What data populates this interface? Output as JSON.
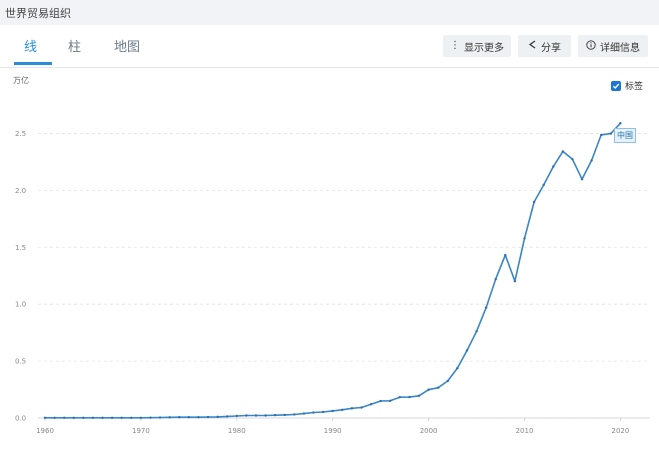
{
  "source": "世界贸易组织",
  "tabs": [
    {
      "label": "线"
    },
    {
      "label": "柱"
    },
    {
      "label": "地图"
    }
  ],
  "toolbar": {
    "more_label": "显示更多",
    "share_label": "分享",
    "details_label": "详细信息"
  },
  "legend": {
    "label": "标签",
    "checked": true
  },
  "colors": {
    "accent": "#2a8ed8",
    "line": "#3a86c8",
    "grid": "#dfe3e8"
  },
  "chart_data": {
    "type": "line",
    "ylabel": "万亿",
    "xlabel": "",
    "ylim": [
      0,
      2.75
    ],
    "xlim": [
      1960,
      2021
    ],
    "yticks": [
      "0.0",
      "0.5",
      "1.0",
      "1.5",
      "2.0",
      "2.5"
    ],
    "xticks": [
      "1960",
      "1970",
      "1980",
      "1990",
      "2000",
      "2010",
      "2020"
    ],
    "grid": true,
    "series": [
      {
        "name": "中国",
        "x": [
          1960,
          1961,
          1962,
          1963,
          1964,
          1965,
          1966,
          1967,
          1968,
          1969,
          1970,
          1971,
          1972,
          1973,
          1974,
          1975,
          1976,
          1977,
          1978,
          1979,
          1980,
          1981,
          1982,
          1983,
          1984,
          1985,
          1986,
          1987,
          1988,
          1989,
          1990,
          1991,
          1992,
          1993,
          1994,
          1995,
          1996,
          1997,
          1998,
          1999,
          2000,
          2001,
          2002,
          2003,
          2004,
          2005,
          2006,
          2007,
          2008,
          2009,
          2010,
          2011,
          2012,
          2013,
          2014,
          2015,
          2016,
          2017,
          2018,
          2019,
          2020
        ],
        "y": [
          0.002,
          0.002,
          0.002,
          0.002,
          0.002,
          0.002,
          0.002,
          0.002,
          0.002,
          0.002,
          0.002,
          0.003,
          0.004,
          0.006,
          0.007,
          0.007,
          0.007,
          0.008,
          0.01,
          0.014,
          0.018,
          0.022,
          0.022,
          0.022,
          0.025,
          0.027,
          0.031,
          0.039,
          0.048,
          0.053,
          0.062,
          0.072,
          0.085,
          0.092,
          0.121,
          0.149,
          0.151,
          0.183,
          0.184,
          0.195,
          0.249,
          0.266,
          0.326,
          0.438,
          0.593,
          0.762,
          0.969,
          1.22,
          1.431,
          1.202,
          1.578,
          1.898,
          2.048,
          2.209,
          2.342,
          2.273,
          2.098,
          2.263,
          2.487,
          2.499,
          2.59
        ]
      }
    ]
  }
}
